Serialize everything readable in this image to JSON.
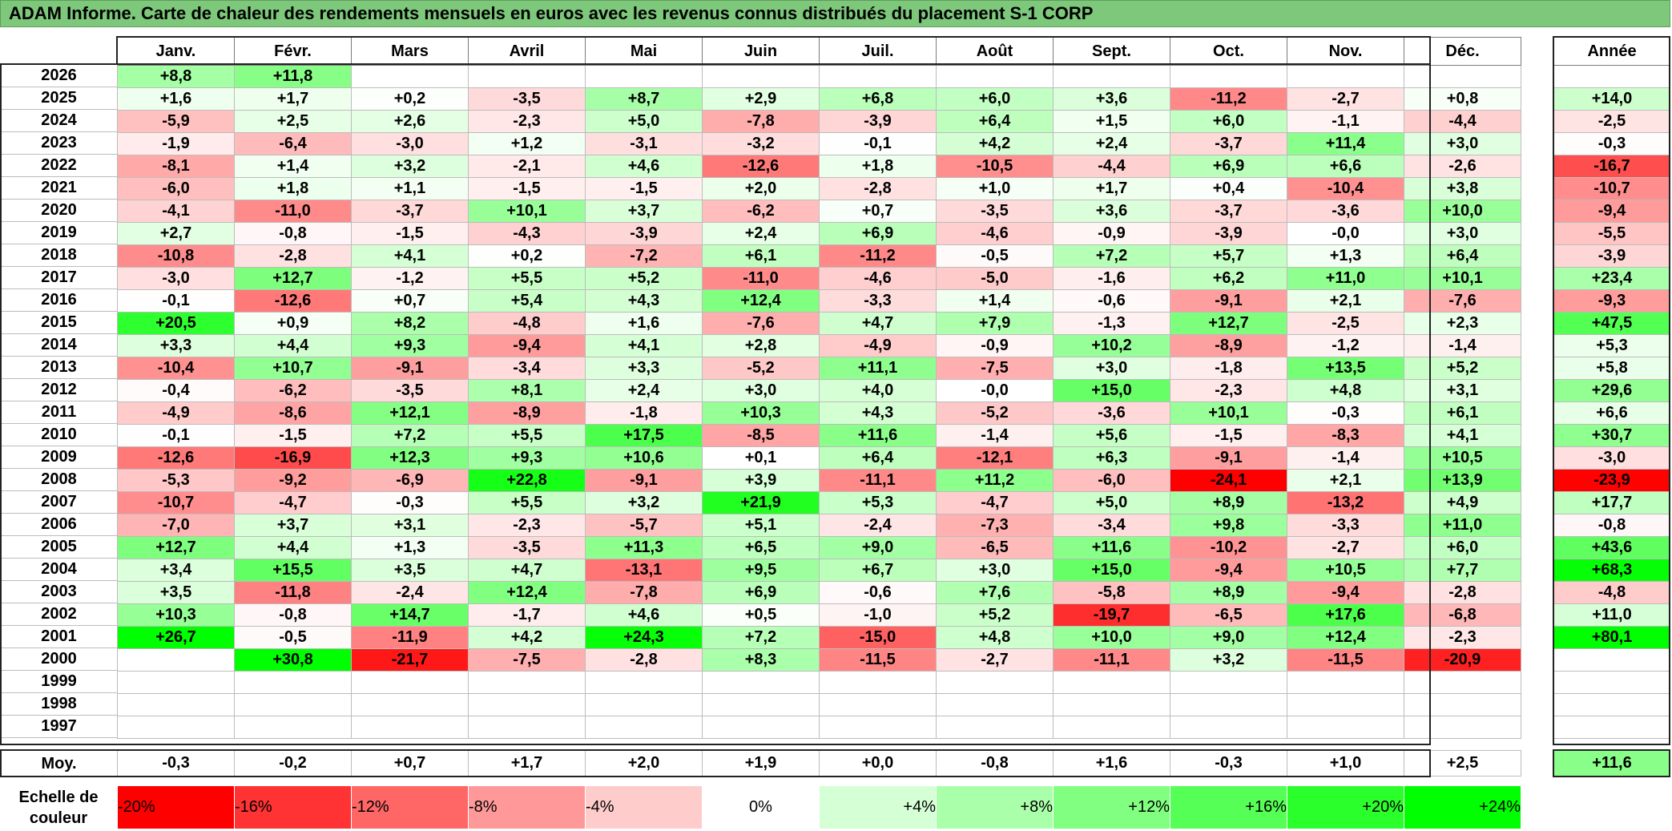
{
  "title": "ADAM Informe. Carte de chaleur des rendements mensuels en euros avec les revenus connus distribués du placement S-1 CORP",
  "months": [
    "Janv.",
    "Févr.",
    "Mars",
    "Avril",
    "Mai",
    "Juin",
    "Juil.",
    "Août",
    "Sept.",
    "Oct.",
    "Nov.",
    "Déc."
  ],
  "year_header": "Année",
  "avg_label": "Moy.",
  "scale_label": "Echelle de couleur",
  "colors": {
    "max_red": "#ff0000",
    "max_green": "#00ff00",
    "neutral": "#ffffff",
    "title_bg": "#7dc87b"
  },
  "chart_data": {
    "type": "heatmap",
    "title": "ADAM Informe. Carte de chaleur des rendements mensuels en euros avec les revenus connus distribués du placement S-1 CORP",
    "x": [
      "Janv.",
      "Févr.",
      "Mars",
      "Avril",
      "Mai",
      "Juin",
      "Juil.",
      "Août",
      "Sept.",
      "Oct.",
      "Nov.",
      "Déc."
    ],
    "rows": [
      {
        "year": "2026",
        "values": [
          8.8,
          11.8,
          null,
          null,
          null,
          null,
          null,
          null,
          null,
          null,
          null,
          null
        ],
        "annual": null
      },
      {
        "year": "2025",
        "values": [
          1.6,
          1.7,
          0.2,
          -3.5,
          8.7,
          2.9,
          6.8,
          6.0,
          3.6,
          -11.2,
          -2.7,
          0.8
        ],
        "annual": 14.0
      },
      {
        "year": "2024",
        "values": [
          -5.9,
          2.5,
          2.6,
          -2.3,
          5.0,
          -7.8,
          -3.9,
          6.4,
          1.5,
          6.0,
          -1.1,
          -4.4
        ],
        "annual": -2.5
      },
      {
        "year": "2023",
        "values": [
          -1.9,
          -6.4,
          -3.0,
          1.2,
          -3.1,
          -3.2,
          -0.1,
          4.2,
          2.4,
          -3.7,
          11.4,
          3.0
        ],
        "annual": -0.3
      },
      {
        "year": "2022",
        "values": [
          -8.1,
          1.4,
          3.2,
          -2.1,
          4.6,
          -12.6,
          1.8,
          -10.5,
          -4.4,
          6.9,
          6.6,
          -2.6
        ],
        "annual": -16.7
      },
      {
        "year": "2021",
        "values": [
          -6.0,
          1.8,
          1.1,
          -1.5,
          -1.5,
          2.0,
          -2.8,
          1.0,
          1.7,
          0.4,
          -10.4,
          3.8
        ],
        "annual": -10.7
      },
      {
        "year": "2020",
        "values": [
          -4.1,
          -11.0,
          -3.7,
          10.1,
          3.7,
          -6.2,
          0.7,
          -3.5,
          3.6,
          -3.7,
          -3.6,
          10.0
        ],
        "annual": -9.4
      },
      {
        "year": "2019",
        "values": [
          2.7,
          -0.8,
          -1.5,
          -4.3,
          -3.9,
          2.4,
          6.9,
          -4.6,
          -0.9,
          -3.9,
          "-0.0",
          3.0
        ],
        "annual": -5.5
      },
      {
        "year": "2018",
        "values": [
          -10.8,
          -2.8,
          4.1,
          0.2,
          -7.2,
          6.1,
          -11.2,
          -0.5,
          7.2,
          5.7,
          1.3,
          6.4
        ],
        "annual": -3.9
      },
      {
        "year": "2017",
        "values": [
          -3.0,
          12.7,
          -1.2,
          5.5,
          5.2,
          -11.0,
          -4.6,
          -5.0,
          -1.6,
          6.2,
          11.0,
          10.1
        ],
        "annual": 23.4
      },
      {
        "year": "2016",
        "values": [
          -0.1,
          -12.6,
          0.7,
          5.4,
          4.3,
          12.4,
          -3.3,
          1.4,
          -0.6,
          -9.1,
          2.1,
          -7.6
        ],
        "annual": -9.3
      },
      {
        "year": "2015",
        "values": [
          20.5,
          0.9,
          8.2,
          -4.8,
          1.6,
          -7.6,
          4.7,
          7.9,
          -1.3,
          12.7,
          -2.5,
          2.3
        ],
        "annual": 47.5
      },
      {
        "year": "2014",
        "values": [
          3.3,
          4.4,
          9.3,
          -9.4,
          4.1,
          2.8,
          -4.9,
          -0.9,
          10.2,
          -8.9,
          -1.2,
          -1.4
        ],
        "annual": 5.3
      },
      {
        "year": "2013",
        "values": [
          -10.4,
          10.7,
          -9.1,
          -3.4,
          3.3,
          -5.2,
          11.1,
          -7.5,
          3.0,
          -1.8,
          13.5,
          5.2
        ],
        "annual": 5.8
      },
      {
        "year": "2012",
        "values": [
          -0.4,
          -6.2,
          -3.5,
          8.1,
          2.4,
          3.0,
          4.0,
          "-0.0",
          15.0,
          -2.3,
          4.8,
          3.1
        ],
        "annual": 29.6
      },
      {
        "year": "2011",
        "values": [
          -4.9,
          -8.6,
          12.1,
          -8.9,
          -1.8,
          10.3,
          4.3,
          -5.2,
          -3.6,
          10.1,
          -0.3,
          6.1
        ],
        "annual": 6.6
      },
      {
        "year": "2010",
        "values": [
          -0.1,
          -1.5,
          7.2,
          5.5,
          17.5,
          -8.5,
          11.6,
          -1.4,
          5.6,
          -1.5,
          -8.3,
          4.1
        ],
        "annual": 30.7
      },
      {
        "year": "2009",
        "values": [
          -12.6,
          -16.9,
          12.3,
          9.3,
          10.6,
          0.1,
          6.4,
          -12.1,
          6.3,
          -9.1,
          -1.4,
          10.5
        ],
        "annual": -3.0
      },
      {
        "year": "2008",
        "values": [
          -5.3,
          -9.2,
          -6.9,
          22.8,
          -9.1,
          3.9,
          -11.1,
          11.2,
          -6.0,
          -24.1,
          2.1,
          13.9
        ],
        "annual": -23.9
      },
      {
        "year": "2007",
        "values": [
          -10.7,
          -4.7,
          -0.3,
          5.5,
          3.2,
          21.9,
          5.3,
          -4.7,
          5.0,
          8.9,
          -13.2,
          4.9
        ],
        "annual": 17.7
      },
      {
        "year": "2006",
        "values": [
          -7.0,
          3.7,
          3.1,
          -2.3,
          -5.7,
          5.1,
          -2.4,
          -7.3,
          -3.4,
          9.8,
          -3.3,
          11.0
        ],
        "annual": -0.8
      },
      {
        "year": "2005",
        "values": [
          12.7,
          4.4,
          1.3,
          -3.5,
          11.3,
          6.5,
          9.0,
          -6.5,
          11.6,
          -10.2,
          -2.7,
          6.0
        ],
        "annual": 43.6
      },
      {
        "year": "2004",
        "values": [
          3.4,
          15.5,
          3.5,
          4.7,
          -13.1,
          9.5,
          6.7,
          3.0,
          15.0,
          -9.4,
          10.5,
          7.7
        ],
        "annual": 68.3
      },
      {
        "year": "2003",
        "values": [
          3.5,
          -11.8,
          -2.4,
          12.4,
          -7.8,
          6.9,
          -0.6,
          7.6,
          -5.8,
          8.9,
          -9.4,
          -2.8
        ],
        "annual": -4.8
      },
      {
        "year": "2002",
        "values": [
          10.3,
          -0.8,
          14.7,
          -1.7,
          4.6,
          0.5,
          -1.0,
          5.2,
          -19.7,
          -6.5,
          17.6,
          -6.8
        ],
        "annual": 11.0
      },
      {
        "year": "2001",
        "values": [
          26.7,
          -0.5,
          -11.9,
          4.2,
          24.3,
          7.2,
          -15.0,
          4.8,
          10.0,
          9.0,
          12.4,
          -2.3
        ],
        "annual": 80.1
      },
      {
        "year": "2000",
        "values": [
          null,
          30.8,
          -21.7,
          -7.5,
          -2.8,
          8.3,
          -11.5,
          -2.7,
          -11.1,
          3.2,
          -11.5,
          -20.9
        ],
        "annual": null
      },
      {
        "year": "1999",
        "values": [
          null,
          null,
          null,
          null,
          null,
          null,
          null,
          null,
          null,
          null,
          null,
          null
        ],
        "annual": null
      },
      {
        "year": "1998",
        "values": [
          null,
          null,
          null,
          null,
          null,
          null,
          null,
          null,
          null,
          null,
          null,
          null
        ],
        "annual": null
      },
      {
        "year": "1997",
        "values": [
          null,
          null,
          null,
          null,
          null,
          null,
          null,
          null,
          null,
          null,
          null,
          null
        ],
        "annual": null
      }
    ],
    "averages": [
      -0.3,
      -0.2,
      0.7,
      1.7,
      2.0,
      1.9,
      "0.0",
      -0.8,
      1.6,
      -0.3,
      1.0,
      2.5
    ],
    "average_annual": 11.6,
    "scale": [
      "-20%",
      "-16%",
      "-12%",
      "-8%",
      "-4%",
      "0%",
      "+4%",
      "+8%",
      "+12%",
      "+16%",
      "+20%",
      "+24%"
    ],
    "scale_values": [
      -20,
      -16,
      -12,
      -8,
      -4,
      0,
      4,
      8,
      12,
      16,
      20,
      24
    ]
  }
}
